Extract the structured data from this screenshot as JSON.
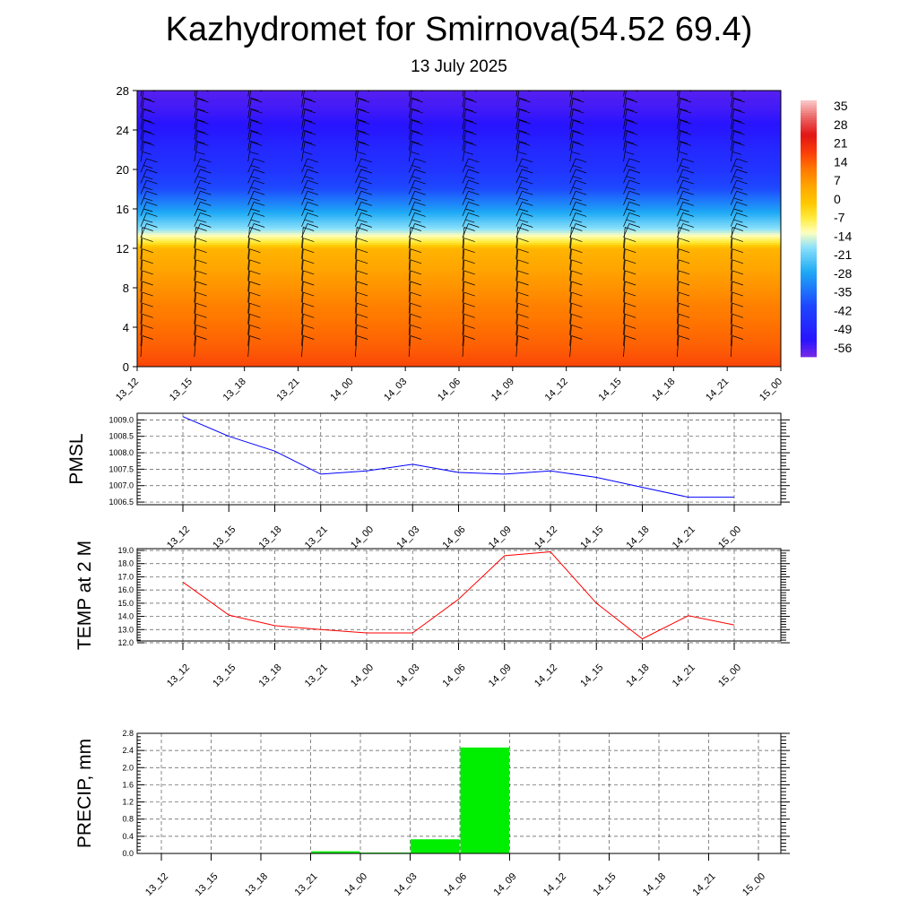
{
  "title": "Kazhydromet for Smirnova(54.52 69.4)",
  "subtitle": "13 July 2025",
  "time_labels": [
    "13_12",
    "13_15",
    "13_18",
    "13_21",
    "14_00",
    "14_03",
    "14_06",
    "14_09",
    "14_12",
    "14_15",
    "14_18",
    "14_21",
    "15_00"
  ],
  "colors": {
    "pmsl_line": "#0000ff",
    "temp_line": "#ff0000",
    "precip_bar": "#00ee00",
    "wind_barb": "#000000"
  },
  "chart_data": [
    {
      "type": "heatmap",
      "name": "temperature-wind-profile",
      "x": [
        "13_12",
        "13_15",
        "13_18",
        "13_21",
        "14_00",
        "14_03",
        "14_06",
        "14_09",
        "14_12",
        "14_15",
        "14_18",
        "14_21",
        "15_00"
      ],
      "yticks": [
        0,
        4,
        8,
        12,
        16,
        20,
        24,
        28
      ],
      "ylim": [
        0,
        28
      ],
      "colorbar_labels": [
        "35",
        "28",
        "21",
        "14",
        "7",
        "0",
        "-7",
        "-14",
        "-21",
        "-28",
        "-35",
        "-42",
        "-49",
        "-56"
      ],
      "colorbar_range": [
        -63,
        42
      ],
      "temperature_profile": {
        "levels": [
          0,
          2,
          4,
          6,
          8,
          10,
          12,
          12.6,
          14,
          16,
          18,
          20,
          22,
          24,
          26,
          28
        ],
        "values": [
          20,
          17,
          15,
          13,
          10,
          7,
          4,
          -5,
          -18,
          -30,
          -41,
          -47,
          -50,
          -55,
          -58,
          -60
        ]
      },
      "wind_barbs": "present",
      "grid": false
    },
    {
      "type": "line",
      "ylabel": "PMSL",
      "x": [
        "13_12",
        "13_15",
        "13_18",
        "13_21",
        "14_00",
        "14_03",
        "14_06",
        "14_09",
        "14_12",
        "14_15",
        "14_18",
        "14_21",
        "15_00"
      ],
      "series": [
        {
          "values": [
            1009.1,
            1008.5,
            1008.05,
            1007.35,
            1007.45,
            1007.65,
            1007.4,
            1007.35,
            1007.45,
            1007.25,
            1006.95,
            1006.65,
            1006.65
          ]
        }
      ],
      "yticks": [
        "1009.0",
        "1008.5",
        "1008.0",
        "1007.5",
        "1007.0",
        "1006.5"
      ],
      "ylim": [
        1006.42,
        1009.2
      ],
      "grid": true
    },
    {
      "type": "line",
      "ylabel": "TEMP at 2 M",
      "x": [
        "13_12",
        "13_15",
        "13_18",
        "13_21",
        "14_00",
        "14_03",
        "14_06",
        "14_09",
        "14_12",
        "14_15",
        "14_18",
        "14_21",
        "15_00"
      ],
      "series": [
        {
          "values": [
            16.6,
            14.1,
            13.3,
            13.0,
            12.75,
            12.75,
            15.3,
            18.6,
            18.9,
            15.0,
            12.3,
            14.05,
            13.35
          ]
        }
      ],
      "yticks": [
        "19.0",
        "18.0",
        "17.0",
        "16.0",
        "15.0",
        "14.0",
        "13.0",
        "12.0"
      ],
      "ylim": [
        12.0,
        19.0
      ],
      "grid": true
    },
    {
      "type": "bar",
      "ylabel": "PRECIP, mm",
      "categories": [
        "13_12",
        "13_15",
        "13_18",
        "13_21",
        "14_00",
        "14_03",
        "14_06",
        "14_09",
        "14_12",
        "14_15",
        "14_18",
        "14_21",
        "15_00"
      ],
      "values": [
        0,
        0,
        0,
        0.05,
        0.02,
        0.33,
        2.47,
        0,
        0,
        0,
        0,
        0,
        0
      ],
      "yticks": [
        "2.8",
        "2.4",
        "2.0",
        "1.6",
        "1.2",
        "0.8",
        "0.4",
        "0.0"
      ],
      "ylim": [
        0,
        2.8
      ],
      "grid": true
    }
  ]
}
